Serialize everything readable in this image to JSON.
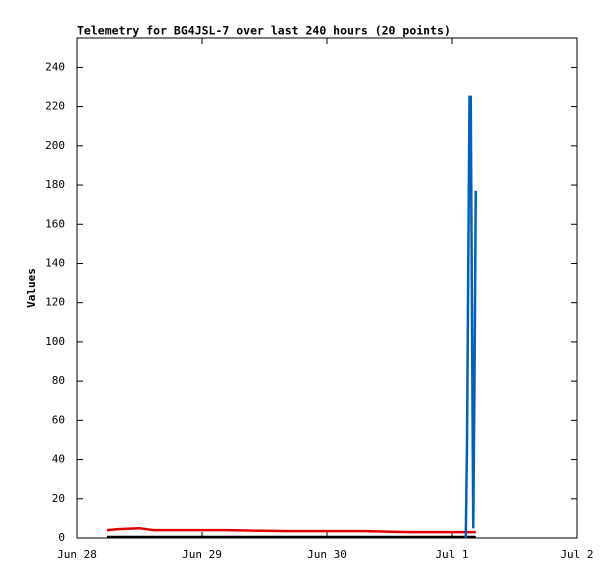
{
  "chart_data": {
    "type": "line",
    "title": "Telemetry for BG4JSL-7 over last 240 hours (20 points)",
    "y_label": "Values",
    "x": [
      0.24,
      0.33,
      0.5,
      0.61,
      0.9,
      1.2,
      1.7,
      2.0,
      2.3,
      2.65,
      3.0,
      3.11,
      3.12,
      3.13,
      3.14,
      3.15,
      3.16,
      3.17,
      3.18,
      3.19
    ],
    "xlim": [
      0,
      4
    ],
    "xticks": [
      {
        "value": 0,
        "label": "Jun 28"
      },
      {
        "value": 1,
        "label": "Jun 29"
      },
      {
        "value": 2,
        "label": "Jun 30"
      },
      {
        "value": 3,
        "label": "Jul 1"
      },
      {
        "value": 4,
        "label": "Jul 2"
      }
    ],
    "ylim": [
      0,
      255
    ],
    "yticks": [
      0,
      20,
      40,
      60,
      80,
      100,
      120,
      140,
      160,
      180,
      200,
      220,
      240
    ],
    "series": [
      {
        "color": "#e00000",
        "values": [
          4,
          4.5,
          5,
          4,
          4,
          4,
          3.5,
          3.5,
          3.5,
          3,
          3,
          3,
          3,
          3,
          3,
          3,
          3,
          3,
          3,
          3
        ]
      },
      {
        "color": "#000000",
        "values": [
          0.5,
          0.5,
          0.5,
          0.5,
          0.5,
          0.5,
          0.5,
          0.5,
          0.5,
          0.5,
          0.5,
          0.5,
          0.5,
          0.5,
          0.5,
          0.5,
          0.5,
          0.5,
          0.5,
          0.5
        ]
      },
      {
        "color": "#0060c0",
        "values": [
          null,
          null,
          null,
          null,
          null,
          null,
          null,
          null,
          null,
          null,
          null,
          0,
          48,
          137,
          225,
          225,
          112,
          5,
          80,
          177
        ]
      }
    ]
  }
}
